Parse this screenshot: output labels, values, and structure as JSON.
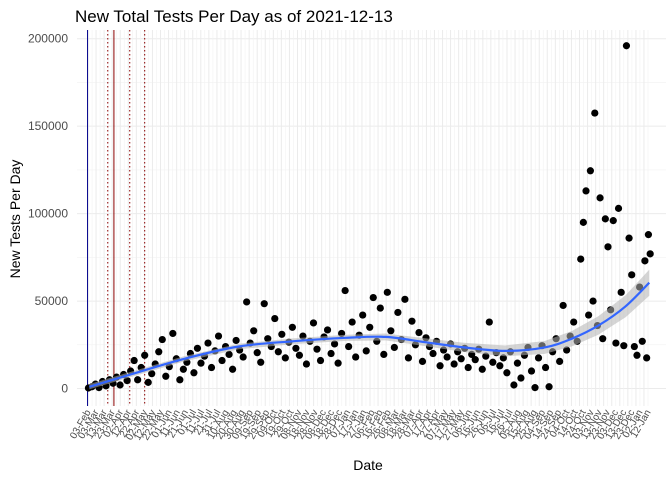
{
  "chart_data": {
    "type": "scatter",
    "title": "New Total Tests Per Day as of 2021-12-13",
    "xlabel": "Date",
    "ylabel": "New Tests Per Day",
    "x_range": [
      "2020-03-01",
      "2021-12-31"
    ],
    "ylim": [
      -10000,
      205000
    ],
    "y_ticks": [
      0,
      50000,
      100000,
      150000,
      200000
    ],
    "y_tick_labels": [
      "0",
      "50000",
      "100000",
      "150000",
      "200000"
    ],
    "grid": true,
    "x_tick_labels_note": "dense rotated date labels, illegible overlap",
    "x_tick_labels": [
      "03-Feb",
      "03-Mar",
      "13-Mar",
      "23-Mar",
      "02-Apr",
      "12-Apr",
      "22-Apr",
      "02-May",
      "12-May",
      "22-May",
      "01-Jun",
      "11-Jun",
      "21-Jun",
      "01-Jul",
      "11-Jul",
      "21-Jul",
      "31-Jul",
      "10-Aug",
      "20-Aug",
      "30-Aug",
      "09-Sep",
      "19-Sep",
      "29-Sep",
      "09-Oct",
      "19-Oct",
      "29-Oct",
      "08-Nov",
      "18-Nov",
      "28-Nov",
      "08-Dec",
      "18-Dec",
      "28-Dec",
      "07-Jan",
      "17-Jan",
      "27-Jan",
      "06-Feb",
      "16-Feb",
      "26-Feb",
      "08-Mar",
      "18-Mar",
      "28-Mar",
      "07-Apr",
      "17-Apr",
      "27-Apr",
      "07-May",
      "17-May",
      "27-May",
      "06-Jun",
      "16-Jun",
      "26-Jun",
      "06-Jul",
      "16-Jul",
      "26-Jul",
      "05-Aug",
      "15-Aug",
      "25-Aug",
      "04-Sep",
      "14-Sep",
      "24-Sep",
      "04-Oct",
      "14-Oct",
      "24-Oct",
      "03-Nov",
      "13-Nov",
      "23-Nov",
      "03-Dec",
      "13-Dec",
      "23-Dec",
      "02-Jan",
      "12-Jan"
    ],
    "vertical_lines": [
      {
        "date": "2020-03-13",
        "style": "solid",
        "color": "#00008b"
      },
      {
        "date": "2020-04-05",
        "style": "dotted",
        "color": "#8b0000"
      },
      {
        "date": "2020-04-12",
        "style": "solid",
        "color": "#8b0000"
      },
      {
        "date": "2020-04-30",
        "style": "dotted",
        "color": "#8b0000"
      },
      {
        "date": "2020-05-17",
        "style": "dotted",
        "color": "#8b0000"
      }
    ],
    "smooth": {
      "color": "#3366ff",
      "band_color": "#b3b3b3",
      "points": [
        {
          "date": "2020-03-15",
          "y": 1000
        },
        {
          "date": "2020-05-01",
          "y": 8000
        },
        {
          "date": "2020-07-01",
          "y": 17000
        },
        {
          "date": "2020-09-01",
          "y": 24000
        },
        {
          "date": "2020-11-01",
          "y": 27000
        },
        {
          "date": "2021-01-01",
          "y": 29000
        },
        {
          "date": "2021-02-15",
          "y": 29500
        },
        {
          "date": "2021-04-01",
          "y": 26500
        },
        {
          "date": "2021-05-15",
          "y": 23500
        },
        {
          "date": "2021-07-01",
          "y": 21500
        },
        {
          "date": "2021-08-15",
          "y": 23500
        },
        {
          "date": "2021-09-15",
          "y": 28500
        },
        {
          "date": "2021-10-15",
          "y": 36000
        },
        {
          "date": "2021-11-15",
          "y": 47000
        },
        {
          "date": "2021-12-12",
          "y": 60500
        }
      ]
    },
    "point_color": "#000000",
    "points": [
      {
        "date": "2020-03-14",
        "y": 300
      },
      {
        "date": "2020-03-18",
        "y": 1000
      },
      {
        "date": "2020-03-22",
        "y": 2500
      },
      {
        "date": "2020-03-26",
        "y": 500
      },
      {
        "date": "2020-03-30",
        "y": 4000
      },
      {
        "date": "2020-04-03",
        "y": 1500
      },
      {
        "date": "2020-04-07",
        "y": 5000
      },
      {
        "date": "2020-04-11",
        "y": 3000
      },
      {
        "date": "2020-04-15",
        "y": 6500
      },
      {
        "date": "2020-04-19",
        "y": 2000
      },
      {
        "date": "2020-04-23",
        "y": 8000
      },
      {
        "date": "2020-04-27",
        "y": 4500
      },
      {
        "date": "2020-05-01",
        "y": 10000
      },
      {
        "date": "2020-05-05",
        "y": 16000
      },
      {
        "date": "2020-05-09",
        "y": 5000
      },
      {
        "date": "2020-05-13",
        "y": 12000
      },
      {
        "date": "2020-05-17",
        "y": 19000
      },
      {
        "date": "2020-05-21",
        "y": 3500
      },
      {
        "date": "2020-05-25",
        "y": 8500
      },
      {
        "date": "2020-05-29",
        "y": 14000
      },
      {
        "date": "2020-06-02",
        "y": 21000
      },
      {
        "date": "2020-06-06",
        "y": 28000
      },
      {
        "date": "2020-06-10",
        "y": 7000
      },
      {
        "date": "2020-06-14",
        "y": 12500
      },
      {
        "date": "2020-06-18",
        "y": 31500
      },
      {
        "date": "2020-06-22",
        "y": 17000
      },
      {
        "date": "2020-06-26",
        "y": 5000
      },
      {
        "date": "2020-06-30",
        "y": 11000
      },
      {
        "date": "2020-07-04",
        "y": 15000
      },
      {
        "date": "2020-07-08",
        "y": 20000
      },
      {
        "date": "2020-07-12",
        "y": 9000
      },
      {
        "date": "2020-07-16",
        "y": 23000
      },
      {
        "date": "2020-07-20",
        "y": 14500
      },
      {
        "date": "2020-07-24",
        "y": 18500
      },
      {
        "date": "2020-07-28",
        "y": 26000
      },
      {
        "date": "2020-08-01",
        "y": 12000
      },
      {
        "date": "2020-08-05",
        "y": 21500
      },
      {
        "date": "2020-08-09",
        "y": 30000
      },
      {
        "date": "2020-08-13",
        "y": 16000
      },
      {
        "date": "2020-08-17",
        "y": 24000
      },
      {
        "date": "2020-08-21",
        "y": 19500
      },
      {
        "date": "2020-08-25",
        "y": 11000
      },
      {
        "date": "2020-08-29",
        "y": 27500
      },
      {
        "date": "2020-09-02",
        "y": 22000
      },
      {
        "date": "2020-09-06",
        "y": 18000
      },
      {
        "date": "2020-09-10",
        "y": 49500
      },
      {
        "date": "2020-09-14",
        "y": 26000
      },
      {
        "date": "2020-09-18",
        "y": 33000
      },
      {
        "date": "2020-09-22",
        "y": 20500
      },
      {
        "date": "2020-09-26",
        "y": 15000
      },
      {
        "date": "2020-09-30",
        "y": 48500
      },
      {
        "date": "2020-10-04",
        "y": 28500
      },
      {
        "date": "2020-10-08",
        "y": 24000
      },
      {
        "date": "2020-10-12",
        "y": 40000
      },
      {
        "date": "2020-10-16",
        "y": 21000
      },
      {
        "date": "2020-10-20",
        "y": 31000
      },
      {
        "date": "2020-10-24",
        "y": 17500
      },
      {
        "date": "2020-10-28",
        "y": 26500
      },
      {
        "date": "2020-11-01",
        "y": 35000
      },
      {
        "date": "2020-11-05",
        "y": 23000
      },
      {
        "date": "2020-11-09",
        "y": 19000
      },
      {
        "date": "2020-11-13",
        "y": 30000
      },
      {
        "date": "2020-11-17",
        "y": 14000
      },
      {
        "date": "2020-11-21",
        "y": 27000
      },
      {
        "date": "2020-11-25",
        "y": 37500
      },
      {
        "date": "2020-11-29",
        "y": 22500
      },
      {
        "date": "2020-12-03",
        "y": 16000
      },
      {
        "date": "2020-12-07",
        "y": 29500
      },
      {
        "date": "2020-12-11",
        "y": 33500
      },
      {
        "date": "2020-12-15",
        "y": 20000
      },
      {
        "date": "2020-12-19",
        "y": 25500
      },
      {
        "date": "2020-12-23",
        "y": 14500
      },
      {
        "date": "2020-12-27",
        "y": 31500
      },
      {
        "date": "2020-12-31",
        "y": 56000
      },
      {
        "date": "2021-01-04",
        "y": 24000
      },
      {
        "date": "2021-01-08",
        "y": 38000
      },
      {
        "date": "2021-01-12",
        "y": 18000
      },
      {
        "date": "2021-01-16",
        "y": 30500
      },
      {
        "date": "2021-01-20",
        "y": 42000
      },
      {
        "date": "2021-01-24",
        "y": 21500
      },
      {
        "date": "2021-01-28",
        "y": 35000
      },
      {
        "date": "2021-02-01",
        "y": 52000
      },
      {
        "date": "2021-02-05",
        "y": 27000
      },
      {
        "date": "2021-02-09",
        "y": 46000
      },
      {
        "date": "2021-02-13",
        "y": 19500
      },
      {
        "date": "2021-02-17",
        "y": 55000
      },
      {
        "date": "2021-02-21",
        "y": 33000
      },
      {
        "date": "2021-02-25",
        "y": 23500
      },
      {
        "date": "2021-03-01",
        "y": 43500
      },
      {
        "date": "2021-03-05",
        "y": 28000
      },
      {
        "date": "2021-03-09",
        "y": 51000
      },
      {
        "date": "2021-03-13",
        "y": 17500
      },
      {
        "date": "2021-03-17",
        "y": 38500
      },
      {
        "date": "2021-03-21",
        "y": 25000
      },
      {
        "date": "2021-03-25",
        "y": 32000
      },
      {
        "date": "2021-03-29",
        "y": 15500
      },
      {
        "date": "2021-04-02",
        "y": 29000
      },
      {
        "date": "2021-04-06",
        "y": 24000
      },
      {
        "date": "2021-04-10",
        "y": 20000
      },
      {
        "date": "2021-04-14",
        "y": 27000
      },
      {
        "date": "2021-04-18",
        "y": 13000
      },
      {
        "date": "2021-04-22",
        "y": 22000
      },
      {
        "date": "2021-04-26",
        "y": 18000
      },
      {
        "date": "2021-04-30",
        "y": 25500
      },
      {
        "date": "2021-05-04",
        "y": 14000
      },
      {
        "date": "2021-05-08",
        "y": 21000
      },
      {
        "date": "2021-05-12",
        "y": 17000
      },
      {
        "date": "2021-05-16",
        "y": 23000
      },
      {
        "date": "2021-05-20",
        "y": 12000
      },
      {
        "date": "2021-05-24",
        "y": 19500
      },
      {
        "date": "2021-05-28",
        "y": 16500
      },
      {
        "date": "2021-06-01",
        "y": 22500
      },
      {
        "date": "2021-06-05",
        "y": 11000
      },
      {
        "date": "2021-06-09",
        "y": 18500
      },
      {
        "date": "2021-06-13",
        "y": 38000
      },
      {
        "date": "2021-06-17",
        "y": 15000
      },
      {
        "date": "2021-06-21",
        "y": 20500
      },
      {
        "date": "2021-06-25",
        "y": 13000
      },
      {
        "date": "2021-06-29",
        "y": 17500
      },
      {
        "date": "2021-07-03",
        "y": 9000
      },
      {
        "date": "2021-07-07",
        "y": 21000
      },
      {
        "date": "2021-07-11",
        "y": 2000
      },
      {
        "date": "2021-07-15",
        "y": 14500
      },
      {
        "date": "2021-07-19",
        "y": 6000
      },
      {
        "date": "2021-07-23",
        "y": 19000
      },
      {
        "date": "2021-07-27",
        "y": 23500
      },
      {
        "date": "2021-07-31",
        "y": 10000
      },
      {
        "date": "2021-08-04",
        "y": 500
      },
      {
        "date": "2021-08-08",
        "y": 17500
      },
      {
        "date": "2021-08-12",
        "y": 24500
      },
      {
        "date": "2021-08-16",
        "y": 12000
      },
      {
        "date": "2021-08-20",
        "y": 1000
      },
      {
        "date": "2021-08-24",
        "y": 21000
      },
      {
        "date": "2021-08-28",
        "y": 28500
      },
      {
        "date": "2021-09-01",
        "y": 15500
      },
      {
        "date": "2021-09-05",
        "y": 47500
      },
      {
        "date": "2021-09-09",
        "y": 22000
      },
      {
        "date": "2021-09-13",
        "y": 30000
      },
      {
        "date": "2021-09-17",
        "y": 38000
      },
      {
        "date": "2021-09-21",
        "y": 27000
      },
      {
        "date": "2021-09-25",
        "y": 74000
      },
      {
        "date": "2021-09-28",
        "y": 95000
      },
      {
        "date": "2021-10-01",
        "y": 113000
      },
      {
        "date": "2021-10-04",
        "y": 42000
      },
      {
        "date": "2021-10-06",
        "y": 124500
      },
      {
        "date": "2021-10-09",
        "y": 50000
      },
      {
        "date": "2021-10-11",
        "y": 157500
      },
      {
        "date": "2021-10-14",
        "y": 36000
      },
      {
        "date": "2021-10-17",
        "y": 109000
      },
      {
        "date": "2021-10-20",
        "y": 28500
      },
      {
        "date": "2021-10-23",
        "y": 97000
      },
      {
        "date": "2021-10-26",
        "y": 81000
      },
      {
        "date": "2021-10-29",
        "y": 45000
      },
      {
        "date": "2021-11-01",
        "y": 96000
      },
      {
        "date": "2021-11-04",
        "y": 26000
      },
      {
        "date": "2021-11-07",
        "y": 103000
      },
      {
        "date": "2021-11-10",
        "y": 55000
      },
      {
        "date": "2021-11-13",
        "y": 24500
      },
      {
        "date": "2021-11-16",
        "y": 196000
      },
      {
        "date": "2021-11-19",
        "y": 86000
      },
      {
        "date": "2021-11-22",
        "y": 65000
      },
      {
        "date": "2021-11-25",
        "y": 24000
      },
      {
        "date": "2021-11-28",
        "y": 19000
      },
      {
        "date": "2021-12-01",
        "y": 58000
      },
      {
        "date": "2021-12-04",
        "y": 27000
      },
      {
        "date": "2021-12-07",
        "y": 73000
      },
      {
        "date": "2021-12-09",
        "y": 17500
      },
      {
        "date": "2021-12-11",
        "y": 88000
      },
      {
        "date": "2021-12-13",
        "y": 77000
      }
    ]
  }
}
